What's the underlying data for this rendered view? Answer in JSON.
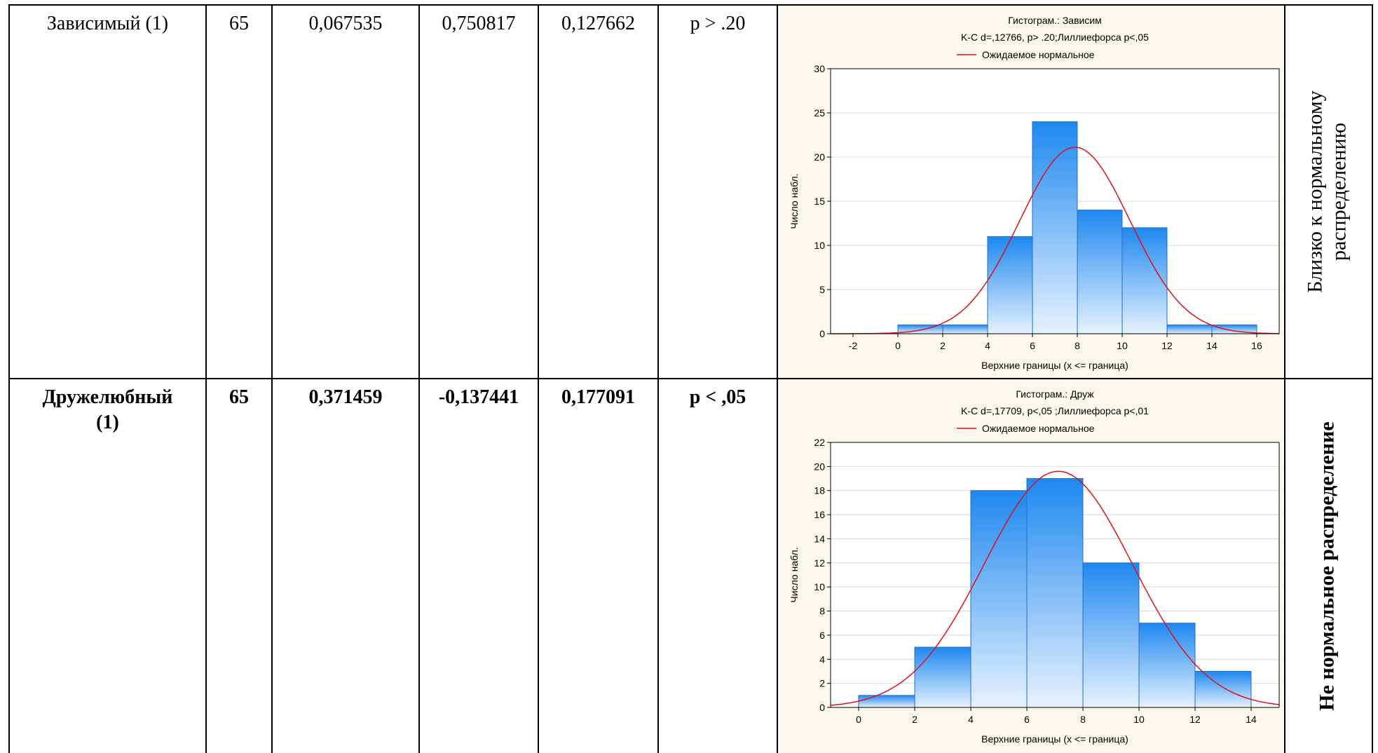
{
  "table": {
    "rows": [
      {
        "cells": [
          "Зависимый (1)",
          "65",
          "0,067535",
          "0,750817",
          "0,127662",
          "p > .20"
        ],
        "bold": false,
        "chart": {
          "type": "histogram",
          "title": "Гистограм.: Зависим",
          "subtitle": "K-C d=,12766, p> .20;Лиллиефорса p<,05",
          "legend": "Ожидаемое нормальное",
          "xlabel": "Верхние границы (x <= граница)",
          "ylabel": "Число набл.",
          "bins": [
            -2,
            0,
            2,
            4,
            6,
            8,
            10,
            12,
            14,
            16
          ],
          "counts": [
            0,
            1,
            1,
            11,
            24,
            14,
            12,
            1,
            1
          ],
          "xlim": [
            -3,
            17
          ],
          "ylim": [
            0,
            30
          ],
          "xticks": [
            -2,
            0,
            2,
            4,
            6,
            8,
            10,
            12,
            14,
            16
          ],
          "yticks": [
            0,
            5,
            10,
            15,
            20,
            25,
            30
          ],
          "color": "#1e88f0",
          "curve_color": "#e0101a"
        },
        "conclusion": [
          "Близко к нормальному",
          "распределению"
        ]
      },
      {
        "cells": [
          "Дружелюбный (1)",
          "65",
          "0,371459",
          "-0,137441",
          "0,177091",
          "p < ,05"
        ],
        "bold": true,
        "chart": {
          "type": "histogram",
          "title": "Гистограм.: Друж",
          "subtitle": "K-C d=,17709, p<,05 ;Лиллиефорса p<,01",
          "legend": "Ожидаемое нормальное",
          "xlabel": "Верхние границы (x <= граница)",
          "ylabel": "Число набл.",
          "bins": [
            0,
            2,
            4,
            6,
            8,
            10,
            12,
            14
          ],
          "counts": [
            1,
            5,
            18,
            19,
            12,
            7,
            3
          ],
          "xlim": [
            -1,
            15
          ],
          "ylim": [
            0,
            22
          ],
          "xticks": [
            0,
            2,
            4,
            6,
            8,
            10,
            12,
            14
          ],
          "yticks": [
            0,
            2,
            4,
            6,
            8,
            10,
            12,
            14,
            16,
            18,
            20,
            22
          ],
          "color": "#1e88f0",
          "curve_color": "#e0101a"
        },
        "conclusion": [
          "Не нормальное распределение"
        ]
      }
    ]
  }
}
